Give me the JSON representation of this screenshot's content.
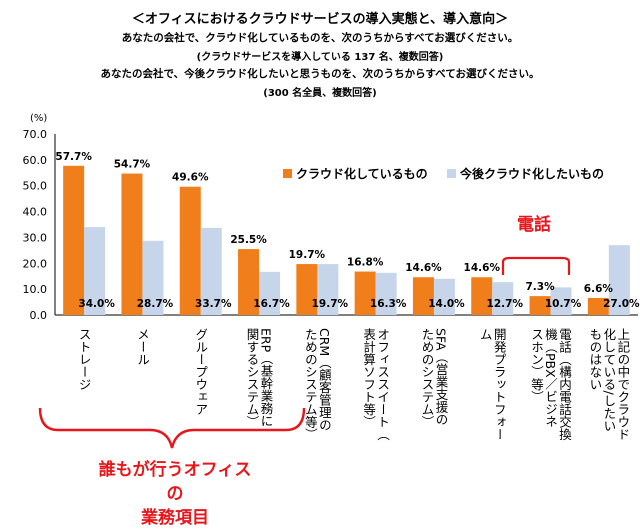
{
  "header": {
    "title": "＜オフィスにおけるクラウドサービスの導入実態と、導入意向＞",
    "q1": "あなたの会社で、クラウド化しているものを、次のうちからすべてお選びください。",
    "q1_note": "(クラウドサービスを導入している 137 名、複数回答)",
    "q2": "あなたの会社で、今後クラウド化したいと思うものを、次のうちからすべてお選びください。",
    "q2_note": "(300 名全員、複数回答)"
  },
  "annotations": {
    "phone": "電話",
    "office_line1": "誰もが行うオフィスの",
    "office_line2": "業務項目"
  },
  "colors": {
    "series1": "#f07f1b",
    "series2": "#c6d5ea",
    "annotation": "#e8161b"
  },
  "chart_data": {
    "type": "bar",
    "ylabel": "(%)",
    "ylim": [
      0,
      70
    ],
    "yticks": [
      "0.0",
      "10.0",
      "20.0",
      "30.0",
      "40.0",
      "50.0",
      "60.0",
      "70.0"
    ],
    "legend_position": "top-right",
    "categories": [
      "ストレージ",
      "メール",
      "グループウェア",
      "ERP（基幹業務に関するシステム）",
      "CRM（顧客管理のためのシステム等）",
      "オフィススイート（表計算ソフト等）",
      "SFA（営業支援のためのシステム）",
      "開発プラットフォーム",
      "電話（構内電話交換機（PBX／ビジネスホン）等）",
      "上記の中でクラウド化している/したいものはない"
    ],
    "series": [
      {
        "name": "クラウド化しているもの",
        "values": [
          57.7,
          54.7,
          49.6,
          25.5,
          19.7,
          16.8,
          14.6,
          14.6,
          7.3,
          6.6
        ],
        "labels": [
          "57.7%",
          "54.7%",
          "49.6%",
          "25.5%",
          "19.7%",
          "16.8%",
          "14.6%",
          "14.6%",
          "7.3%",
          "6.6%"
        ]
      },
      {
        "name": "今後クラウド化したいもの",
        "values": [
          34.0,
          28.7,
          33.7,
          16.7,
          19.7,
          16.3,
          14.0,
          12.7,
          10.7,
          27.0
        ],
        "labels": [
          "34.0%",
          "28.7%",
          "33.7%",
          "16.7%",
          "19.7%",
          "16.3%",
          "14.0%",
          "12.7%",
          "10.7%",
          "27.0%"
        ]
      }
    ]
  }
}
